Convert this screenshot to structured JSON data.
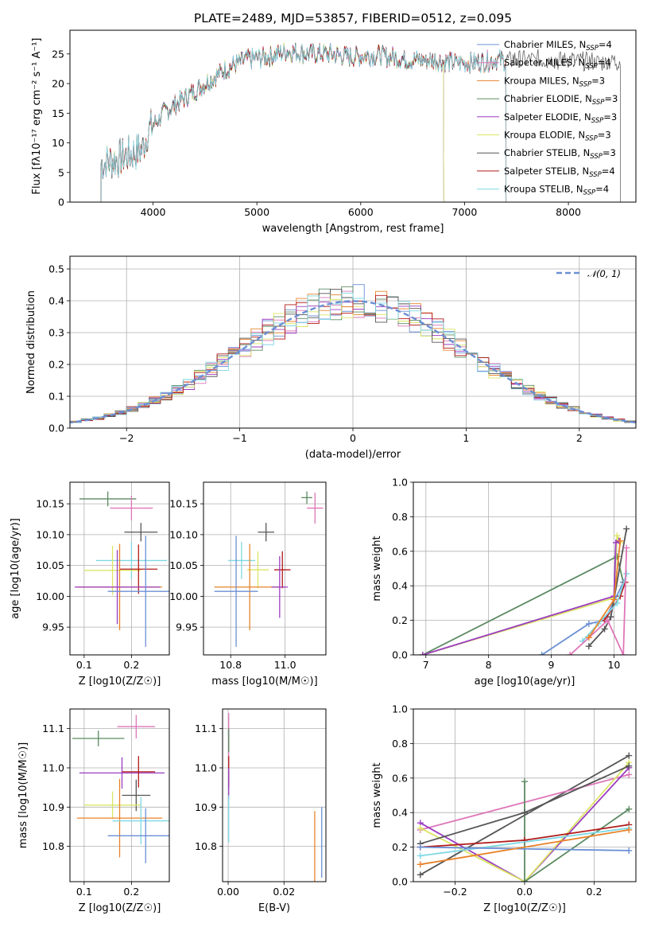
{
  "title": "PLATE=2489, MJD=53857, FIBERID=0512, z=0.095",
  "colors": {
    "Chabrier MILES": "#6b8fd4",
    "Salpeter MILES": "#de76b8",
    "Kroupa MILES": "#e8832a",
    "Chabrier ELODIE": "#5b8a62",
    "Salpeter ELODIE": "#9b3cc1",
    "Kroupa ELODIE": "#dbe565",
    "Chabrier STELIB": "#555555",
    "Salpeter STELIB": "#b21a1a",
    "Kroupa STELIB": "#7fd8e4",
    "normal": "#6b8fd4"
  },
  "chart_data": [
    {
      "type": "line",
      "name": "spectrum",
      "xlabel": "wavelength [Angstrom, rest frame]",
      "ylabel": "Flux [fλ10⁻¹⁷ erg cm⁻² s⁻¹ A⁻¹]",
      "xlim": [
        3200,
        8650
      ],
      "ylim": [
        0,
        29
      ],
      "xticks": [
        4000,
        5000,
        6000,
        7000,
        8000
      ],
      "yticks": [
        0,
        5,
        10,
        15,
        20,
        25
      ],
      "legend_position": "right",
      "legend": [
        {
          "label": "Chabrier MILES, N",
          "sub": "SSP",
          "suffix": "=4",
          "series": "Chabrier MILES"
        },
        {
          "label": "Salpeter MILES, N",
          "sub": "SSP",
          "suffix": "=4",
          "series": "Salpeter MILES"
        },
        {
          "label": "Kroupa MILES, N",
          "sub": "SSP",
          "suffix": "=3",
          "series": "Kroupa MILES"
        },
        {
          "label": "Chabrier ELODIE, N",
          "sub": "SSP",
          "suffix": "=3",
          "series": "Chabrier ELODIE"
        },
        {
          "label": "Salpeter ELODIE, N",
          "sub": "SSP",
          "suffix": "=3",
          "series": "Salpeter ELODIE"
        },
        {
          "label": "Kroupa ELODIE, N",
          "sub": "SSP",
          "suffix": "=3",
          "series": "Kroupa ELODIE"
        },
        {
          "label": "Chabrier STELIB, N",
          "sub": "SSP",
          "suffix": "=3",
          "series": "Chabrier STELIB"
        },
        {
          "label": "Salpeter STELIB, N",
          "sub": "SSP",
          "suffix": "=4",
          "series": "Salpeter STELIB"
        },
        {
          "label": "Kroupa STELIB, N",
          "sub": "SSP",
          "suffix": "=4",
          "series": "Kroupa STELIB"
        }
      ],
      "continuum": [
        [
          3500,
          6.5
        ],
        [
          3700,
          7.5
        ],
        [
          3900,
          9
        ],
        [
          3950,
          12
        ],
        [
          4000,
          13
        ],
        [
          4100,
          15
        ],
        [
          4300,
          17.5
        ],
        [
          4500,
          20
        ],
        [
          4700,
          22.5
        ],
        [
          4900,
          24
        ],
        [
          5100,
          24.5
        ],
        [
          5300,
          25.5
        ],
        [
          5500,
          25
        ],
        [
          5700,
          25
        ],
        [
          5900,
          24.5
        ],
        [
          6100,
          24.8
        ],
        [
          6300,
          24.5
        ],
        [
          6500,
          24
        ],
        [
          6700,
          24
        ],
        [
          6900,
          23.5
        ],
        [
          7100,
          23.5
        ],
        [
          7300,
          24
        ],
        [
          7500,
          24
        ],
        [
          7700,
          24
        ],
        [
          8000,
          24
        ],
        [
          8200,
          23.8
        ]
      ],
      "series_ranges": [
        {
          "name": "Chabrier MILES",
          "x": [
            3500,
            7400
          ]
        },
        {
          "name": "Salpeter MILES",
          "x": [
            3500,
            7400
          ]
        },
        {
          "name": "Kroupa MILES",
          "x": [
            3500,
            7400
          ]
        },
        {
          "name": "Chabrier ELODIE",
          "x": [
            3500,
            6800
          ]
        },
        {
          "name": "Salpeter ELODIE",
          "x": [
            3500,
            6800
          ]
        },
        {
          "name": "Kroupa ELODIE",
          "x": [
            3500,
            6800
          ]
        },
        {
          "name": "Chabrier STELIB",
          "x": [
            3500,
            8500
          ]
        },
        {
          "name": "Salpeter STELIB",
          "x": [
            3500,
            7400
          ]
        },
        {
          "name": "Kroupa STELIB",
          "x": [
            3500,
            7400
          ]
        }
      ]
    },
    {
      "type": "histogram",
      "name": "residuals",
      "xlabel": "(data-model)/error",
      "ylabel": "Normed distribution",
      "xlim": [
        -2.5,
        2.5
      ],
      "ylim": [
        0,
        0.54
      ],
      "xticks": [
        -2,
        -1,
        0,
        1,
        2
      ],
      "yticks": [
        0.0,
        0.1,
        0.2,
        0.3,
        0.4,
        0.5
      ],
      "legend_position": "top-right",
      "legend_label": "𝒩(0, 1)",
      "bin_width": 0.1
    },
    {
      "type": "errorbar",
      "name": "age_vs_Z",
      "xlabel": "Z [log10(Z/Z☉)]",
      "ylabel": "age  [log10(age/yr)]",
      "xlim": [
        0.07,
        0.28
      ],
      "ylim": [
        9.905,
        10.185
      ],
      "xticks": [
        0.1,
        0.2
      ],
      "yticks": [
        9.95,
        10.0,
        10.05,
        10.1,
        10.15
      ],
      "points": [
        {
          "s": "Chabrier ELODIE",
          "x": 0.15,
          "y": 10.158,
          "xe": 0.06,
          "ye": 0.012
        },
        {
          "s": "Salpeter MILES",
          "x": 0.2,
          "y": 10.143,
          "xe": 0.045,
          "ye": 0.02
        },
        {
          "s": "Chabrier STELIB",
          "x": 0.22,
          "y": 10.104,
          "xe": 0.035,
          "ye": 0.015
        },
        {
          "s": "Kroupa STELIB",
          "x": 0.2,
          "y": 10.058,
          "xe": 0.075,
          "ye": 0.03
        },
        {
          "s": "Kroupa ELODIE",
          "x": 0.16,
          "y": 10.042,
          "xe": 0.06,
          "ye": 0.04
        },
        {
          "s": "Salpeter STELIB",
          "x": 0.215,
          "y": 10.044,
          "xe": 0.04,
          "ye": 0.04
        },
        {
          "s": "Kroupa MILES",
          "x": 0.175,
          "y": 10.015,
          "xe": 0.09,
          "ye": 0.07
        },
        {
          "s": "Salpeter ELODIE",
          "x": 0.17,
          "y": 10.015,
          "xe": 0.09,
          "ye": 0.06
        },
        {
          "s": "Chabrier MILES",
          "x": 0.23,
          "y": 10.008,
          "xe": 0.08,
          "ye": 0.09
        }
      ]
    },
    {
      "type": "errorbar",
      "name": "age_vs_mass",
      "xlabel": "mass [log10(M/M☉)]",
      "ylabel": "",
      "xlim": [
        10.7,
        11.15
      ],
      "ylim": [
        9.905,
        10.185
      ],
      "xticks": [
        10.8,
        11.0
      ],
      "yticks": [
        9.95,
        10.0,
        10.05,
        10.1,
        10.15
      ],
      "points": [
        {
          "s": "Chabrier ELODIE",
          "x": 11.08,
          "y": 10.16,
          "xe": 0.02,
          "ye": 0.01
        },
        {
          "s": "Salpeter MILES",
          "x": 11.11,
          "y": 10.143,
          "xe": 0.03,
          "ye": 0.025
        },
        {
          "s": "Chabrier STELIB",
          "x": 10.93,
          "y": 10.104,
          "xe": 0.03,
          "ye": 0.015
        },
        {
          "s": "Kroupa STELIB",
          "x": 10.84,
          "y": 10.058,
          "xe": 0.05,
          "ye": 0.03
        },
        {
          "s": "Kroupa ELODIE",
          "x": 10.9,
          "y": 10.043,
          "xe": 0.04,
          "ye": 0.03
        },
        {
          "s": "Salpeter STELIB",
          "x": 10.99,
          "y": 10.043,
          "xe": 0.03,
          "ye": 0.03
        },
        {
          "s": "Kroupa MILES",
          "x": 10.87,
          "y": 10.015,
          "xe": 0.13,
          "ye": 0.07
        },
        {
          "s": "Salpeter ELODIE",
          "x": 10.98,
          "y": 10.015,
          "xe": 0.03,
          "ye": 0.05
        },
        {
          "s": "Chabrier MILES",
          "x": 10.82,
          "y": 10.008,
          "xe": 0.08,
          "ye": 0.09
        }
      ]
    },
    {
      "type": "line",
      "name": "massweight_vs_age",
      "xlabel": "age  [log10(age/yr)]",
      "ylabel": "mass weight",
      "xlim": [
        6.8,
        10.35
      ],
      "ylim": [
        0,
        1.0
      ],
      "xticks": [
        7,
        8,
        9,
        10
      ],
      "yticks": [
        0.0,
        0.2,
        0.4,
        0.6,
        0.8,
        1.0
      ],
      "series": [
        {
          "name": "Chabrier ELODIE",
          "points": [
            [
              6.95,
              0.0
            ],
            [
              10.05,
              0.57
            ],
            [
              10.15,
              0.42
            ]
          ]
        },
        {
          "name": "Kroupa ELODIE",
          "points": [
            [
              6.95,
              0.0
            ],
            [
              10.0,
              0.33
            ],
            [
              10.05,
              0.69
            ],
            [
              10.1,
              0.65
            ]
          ]
        },
        {
          "name": "Salpeter ELODIE",
          "points": [
            [
              6.95,
              0.0
            ],
            [
              10.0,
              0.34
            ],
            [
              10.03,
              0.65
            ],
            [
              10.08,
              0.66
            ]
          ]
        },
        {
          "name": "Chabrier MILES",
          "points": [
            [
              8.85,
              0.0
            ],
            [
              9.6,
              0.18
            ],
            [
              9.85,
              0.2
            ],
            [
              10.15,
              0.42
            ]
          ]
        },
        {
          "name": "Chabrier STELIB",
          "points": [
            [
              9.6,
              0.05
            ],
            [
              9.85,
              0.15
            ],
            [
              9.95,
              0.22
            ],
            [
              10.2,
              0.73
            ]
          ]
        },
        {
          "name": "Salpeter STELIB",
          "points": [
            [
              9.85,
              0.2
            ],
            [
              10.1,
              0.34
            ],
            [
              10.18,
              0.42
            ]
          ]
        },
        {
          "name": "Kroupa STELIB",
          "points": [
            [
              9.5,
              0.08
            ],
            [
              9.75,
              0.18
            ],
            [
              10.05,
              0.3
            ],
            [
              10.2,
              0.47
            ]
          ]
        },
        {
          "name": "Salpeter MILES",
          "points": [
            [
              9.3,
              0.0
            ],
            [
              9.9,
              0.2
            ],
            [
              10.15,
              0.0
            ],
            [
              10.2,
              0.62
            ]
          ]
        },
        {
          "name": "Kroupa MILES",
          "points": [
            [
              9.6,
              0.1
            ],
            [
              10.0,
              0.32
            ],
            [
              10.1,
              0.66
            ]
          ]
        }
      ]
    },
    {
      "type": "errorbar",
      "name": "mass_vs_Z",
      "xlabel": "Z [log10(Z/Z☉)]",
      "ylabel": "mass [log10(M/M☉)]",
      "xlim": [
        0.07,
        0.28
      ],
      "ylim": [
        10.71,
        11.15
      ],
      "xticks": [
        0.1,
        0.2
      ],
      "yticks": [
        10.8,
        10.9,
        11.0,
        11.1
      ],
      "points": [
        {
          "s": "Salpeter MILES",
          "x": 0.21,
          "y": 11.105,
          "xe": 0.04,
          "ye": 0.03
        },
        {
          "s": "Chabrier ELODIE",
          "x": 0.13,
          "y": 11.075,
          "xe": 0.055,
          "ye": 0.02
        },
        {
          "s": "Salpeter ELODIE",
          "x": 0.18,
          "y": 10.987,
          "xe": 0.09,
          "ye": 0.04
        },
        {
          "s": "Salpeter STELIB",
          "x": 0.215,
          "y": 10.99,
          "xe": 0.035,
          "ye": 0.04
        },
        {
          "s": "Chabrier STELIB",
          "x": 0.21,
          "y": 10.93,
          "xe": 0.03,
          "ye": 0.04
        },
        {
          "s": "Kroupa ELODIE",
          "x": 0.16,
          "y": 10.905,
          "xe": 0.06,
          "ye": 0.035
        },
        {
          "s": "Kroupa MILES",
          "x": 0.175,
          "y": 10.872,
          "xe": 0.09,
          "ye": 0.1
        },
        {
          "s": "Kroupa STELIB",
          "x": 0.22,
          "y": 10.865,
          "xe": 0.06,
          "ye": 0.06
        },
        {
          "s": "Chabrier MILES",
          "x": 0.23,
          "y": 10.827,
          "xe": 0.08,
          "ye": 0.07
        }
      ]
    },
    {
      "type": "errorbar",
      "name": "EBV",
      "xlabel": "E(B-V)",
      "ylabel": "",
      "xlim": [
        -0.002,
        0.035
      ],
      "ylim": [
        10.71,
        11.15
      ],
      "xticks": [
        0.0,
        0.02
      ],
      "yticks": [
        10.8,
        10.9,
        11.0,
        11.1
      ],
      "points": [
        {
          "s": "Salpeter MILES",
          "x": 0.0002,
          "y": 11.05,
          "xe": 0.0,
          "ye": 0.09
        },
        {
          "s": "Chabrier ELODIE",
          "x": 0.0002,
          "y": 11.07,
          "xe": 0.0,
          "ye": 0.03
        },
        {
          "s": "Salpeter STELIB",
          "x": 0.0002,
          "y": 10.99,
          "xe": 0.0,
          "ye": 0.04
        },
        {
          "s": "Salpeter ELODIE",
          "x": 0.0002,
          "y": 10.96,
          "xe": 0.0,
          "ye": 0.04
        },
        {
          "s": "Kroupa STELIB",
          "x": 0.0002,
          "y": 10.87,
          "xe": 0.0,
          "ye": 0.06
        },
        {
          "s": "Kroupa MILES",
          "x": 0.031,
          "y": 10.8,
          "xe": 0.0,
          "ye": 0.09
        },
        {
          "s": "Chabrier MILES",
          "x": 0.0335,
          "y": 10.81,
          "xe": 0.0,
          "ye": 0.09
        }
      ]
    },
    {
      "type": "line",
      "name": "massweight_vs_Z",
      "xlabel": "Z [log10(Z/Z☉)]",
      "ylabel": "mass weight",
      "xlim": [
        -0.32,
        0.32
      ],
      "ylim": [
        0,
        1.0
      ],
      "xticks": [
        -0.2,
        0.0,
        0.2
      ],
      "yticks": [
        0.0,
        0.2,
        0.4,
        0.6,
        0.8,
        1.0
      ],
      "series": [
        {
          "name": "Chabrier STELIB",
          "points": [
            [
              -0.3,
              0.04
            ],
            [
              0.3,
              0.73
            ]
          ]
        },
        {
          "name": "Salpeter MILES",
          "points": [
            [
              -0.3,
              0.3
            ],
            [
              0.3,
              0.62
            ]
          ]
        },
        {
          "name": "Salpeter ELODIE",
          "points": [
            [
              -0.3,
              0.34
            ],
            [
              0.0,
              0.0
            ],
            [
              0.3,
              0.66
            ]
          ]
        },
        {
          "name": "Kroupa ELODIE",
          "points": [
            [
              -0.3,
              0.31
            ],
            [
              0.0,
              0.0
            ],
            [
              0.3,
              0.69
            ]
          ]
        },
        {
          "name": "Chabrier ELODIE",
          "points": [
            [
              0.0,
              0.58
            ],
            [
              0.0,
              0.0
            ],
            [
              0.3,
              0.42
            ]
          ]
        },
        {
          "name": "Chabrier STELIB",
          "points": [
            [
              -0.3,
              0.22
            ],
            [
              0.0,
              0.4
            ],
            [
              0.3,
              0.67
            ]
          ]
        },
        {
          "name": "Salpeter STELIB",
          "points": [
            [
              -0.3,
              0.2
            ],
            [
              0.0,
              0.24
            ],
            [
              0.3,
              0.33
            ]
          ]
        },
        {
          "name": "Kroupa STELIB",
          "points": [
            [
              -0.3,
              0.15
            ],
            [
              0.3,
              0.31
            ]
          ]
        },
        {
          "name": "Chabrier MILES",
          "points": [
            [
              -0.3,
              0.2
            ],
            [
              0.3,
              0.18
            ]
          ]
        },
        {
          "name": "Kroupa MILES",
          "points": [
            [
              -0.3,
              0.1
            ],
            [
              0.3,
              0.3
            ]
          ]
        }
      ]
    }
  ]
}
